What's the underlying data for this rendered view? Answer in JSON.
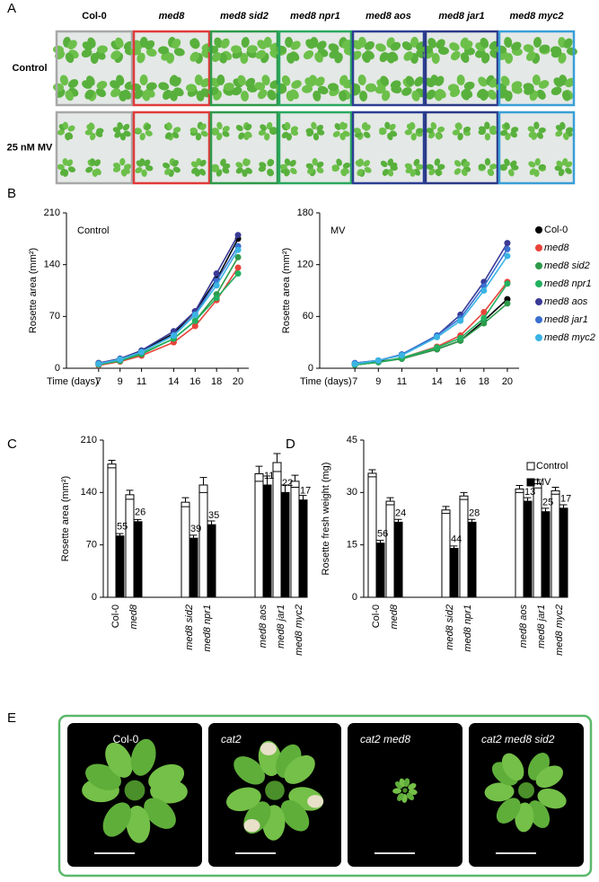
{
  "panel_labels": [
    "A",
    "B",
    "C",
    "D",
    "E"
  ],
  "panel_a": {
    "columns": [
      "Col-0",
      "med8",
      "med8 sid2",
      "med8 npr1",
      "med8 aos",
      "med8 jar1",
      "med8 myc2"
    ],
    "rows": [
      "Control",
      "25 nM MV"
    ],
    "frame_colors": [
      "#a8a8a8",
      "#e03a3a",
      "#2e9a4a",
      "#2aa860",
      "#2c3e94",
      "#2c3a88",
      "#3a9fd8"
    ]
  },
  "chart_data": [
    {
      "type": "line",
      "annotation": "Control",
      "x_label": "Time (days)",
      "y_label": "Rosette area (mm²)",
      "x": [
        7,
        9,
        11,
        14,
        16,
        18,
        20
      ],
      "xlim": [
        4,
        21
      ],
      "xticks": [
        7,
        9,
        11,
        14,
        16,
        18,
        20
      ],
      "ylim": [
        0,
        210
      ],
      "yticks": [
        0,
        70,
        140,
        210
      ],
      "series": [
        {
          "color": "#000000",
          "values": [
            7,
            12,
            23,
            47,
            77,
            120,
            175
          ]
        },
        {
          "color": "#e8433a",
          "values": [
            4,
            9,
            17,
            35,
            57,
            92,
            136
          ]
        },
        {
          "color": "#2e9a4a",
          "values": [
            5,
            10,
            19,
            40,
            64,
            100,
            150
          ]
        },
        {
          "color": "#22b060",
          "values": [
            5,
            10,
            20,
            40,
            64,
            95,
            128
          ]
        },
        {
          "color": "#3a3a96",
          "values": [
            7,
            13,
            24,
            50,
            77,
            128,
            180
          ]
        },
        {
          "color": "#3a6fcf",
          "values": [
            6,
            12,
            22,
            45,
            73,
            118,
            165
          ]
        },
        {
          "color": "#3bb4e4",
          "values": [
            6,
            12,
            22,
            44,
            72,
            112,
            160
          ]
        }
      ]
    },
    {
      "type": "line",
      "annotation": "MV",
      "x_label": "Time (days)",
      "y_label": "Rosette area (mm²)",
      "x": [
        7,
        9,
        11,
        14,
        16,
        18,
        20
      ],
      "xlim": [
        4,
        21
      ],
      "xticks": [
        7,
        9,
        11,
        14,
        16,
        18,
        20
      ],
      "ylim": [
        0,
        180
      ],
      "yticks": [
        0,
        60,
        120,
        180
      ],
      "legend": "right",
      "series": [
        {
          "name": "Col-0",
          "color": "#000000",
          "values": [
            5,
            8,
            11,
            22,
            32,
            55,
            80
          ]
        },
        {
          "name": "med8",
          "color": "#e8433a",
          "values": [
            4,
            7,
            12,
            25,
            38,
            65,
            100
          ]
        },
        {
          "name": "med8 sid2",
          "color": "#2e9a4a",
          "values": [
            4,
            7,
            11,
            22,
            32,
            52,
            75
          ]
        },
        {
          "name": "med8 npr1",
          "color": "#22b060",
          "values": [
            4,
            7,
            12,
            24,
            35,
            58,
            98
          ]
        },
        {
          "name": "med8 aos",
          "color": "#3a3a96",
          "values": [
            6,
            9,
            16,
            38,
            62,
            100,
            145
          ]
        },
        {
          "name": "med8 jar1",
          "color": "#3a6fcf",
          "values": [
            6,
            9,
            16,
            38,
            58,
            95,
            138
          ]
        },
        {
          "name": "med8 myc2",
          "color": "#3bb4e4",
          "values": [
            5,
            9,
            15,
            36,
            55,
            90,
            130
          ]
        }
      ]
    },
    {
      "type": "bar",
      "y_label": "Rosette area (mm²)",
      "categories": [
        "Col-0",
        "med8",
        "med8 sid2",
        "med8 npr1",
        "med8 aos",
        "med8 jar1",
        "med8 myc2"
      ],
      "ylim": [
        0,
        210
      ],
      "yticks": [
        0,
        70,
        140,
        210
      ],
      "series": [
        {
          "color": "#ffffff",
          "values": [
            178,
            137,
            127,
            150,
            165,
            180,
            155
          ],
          "errors": [
            5,
            6,
            6,
            10,
            10,
            12,
            8
          ]
        },
        {
          "color": "#000000",
          "values": [
            82,
            101,
            79,
            97,
            150,
            140,
            130
          ],
          "errors": [
            3,
            3,
            4,
            5,
            12,
            10,
            6
          ]
        }
      ],
      "bar_labels": [
        55,
        26,
        39,
        35,
        11,
        22,
        17
      ]
    },
    {
      "type": "bar",
      "y_label": "Rosette fresh weight (mg)",
      "categories": [
        "Col-0",
        "med8",
        "med8 sid2",
        "med8 npr1",
        "med8 aos",
        "med8 jar1",
        "med8 myc2"
      ],
      "ylim": [
        0,
        45
      ],
      "yticks": [
        0,
        15,
        30,
        45
      ],
      "legend": "upper right",
      "series": [
        {
          "name": "Control",
          "color": "#ffffff",
          "values": [
            35.5,
            27.5,
            25,
            29,
            31,
            32.5,
            30.5
          ],
          "errors": [
            1,
            1,
            1,
            1,
            1,
            1.2,
            1
          ]
        },
        {
          "name": "MV",
          "color": "#000000",
          "values": [
            15.5,
            21.5,
            14,
            21.5,
            27.5,
            24.5,
            25.5
          ],
          "errors": [
            0.8,
            0.8,
            0.7,
            0.8,
            1,
            1,
            1
          ]
        }
      ],
      "bar_labels": [
        56,
        24,
        44,
        28,
        13,
        25,
        17
      ]
    }
  ],
  "panel_e": {
    "labels": [
      "Col-0",
      "cat2",
      "cat2 med8",
      "cat2 med8 sid2"
    ]
  }
}
